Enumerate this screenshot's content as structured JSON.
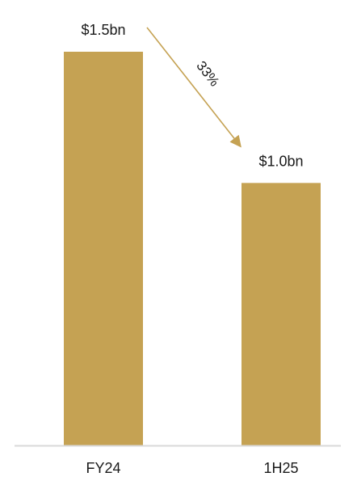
{
  "chart_data": {
    "type": "bar",
    "categories": [
      "FY24",
      "1H25"
    ],
    "values": [
      1.5,
      1.0
    ],
    "data_labels": [
      "$1.5bn",
      "$1.0bn"
    ],
    "ylim": [
      0,
      1.5
    ],
    "grid": false,
    "legend": "none",
    "annotation": {
      "text": "33%",
      "from": "FY24",
      "to": "1H25",
      "shape": "arrow"
    },
    "colors": {
      "bar": "#C5A253",
      "axis": "#D9D9D9",
      "text": "#1A1A1A"
    }
  }
}
